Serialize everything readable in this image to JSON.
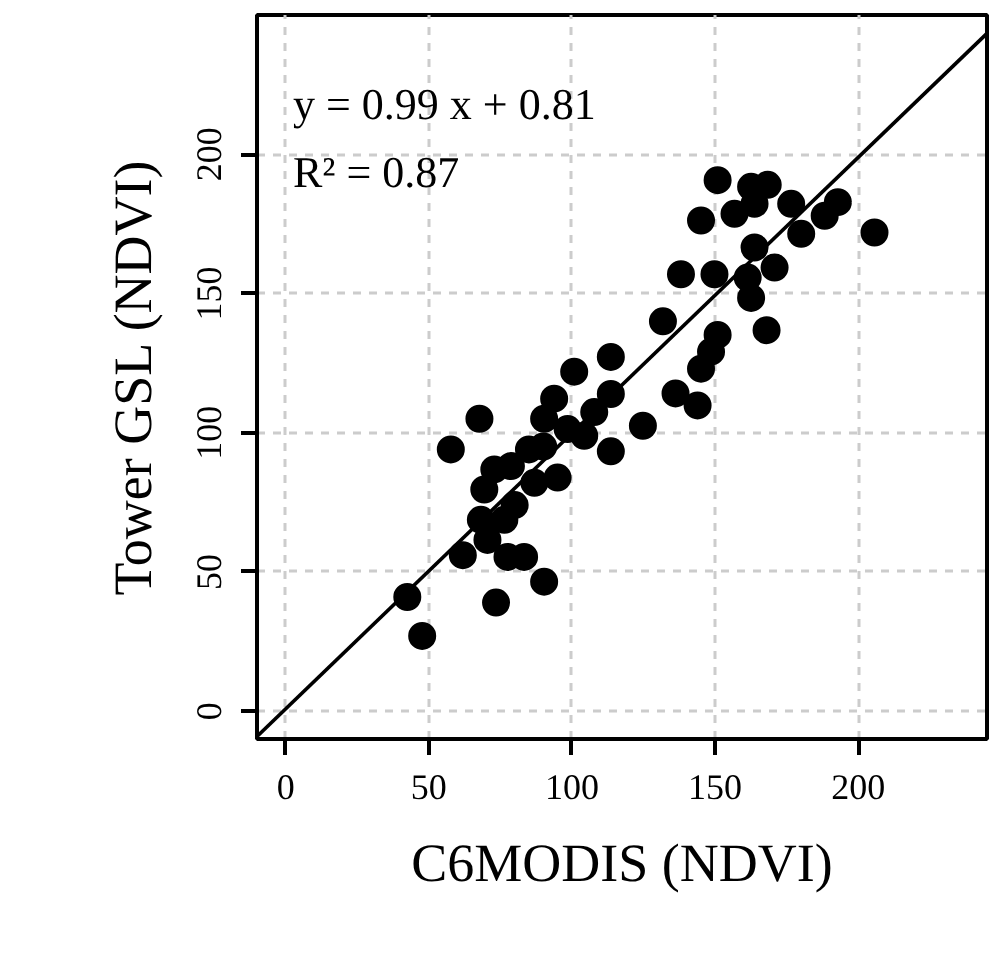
{
  "chart_data": {
    "type": "scatter",
    "xlabel": "C6MODIS (NDVI)",
    "ylabel": "Tower GSL (NDVI)",
    "annotations": [
      "y =  0.99 x + 0.81",
      "R² =  0.87"
    ],
    "xlim": [
      -10,
      245
    ],
    "ylim": [
      -10,
      250
    ],
    "xticks": [
      0,
      50,
      100,
      150,
      200
    ],
    "yticks": [
      0,
      50,
      100,
      150,
      200
    ],
    "grid": true,
    "series": [
      {
        "color": "#000000",
        "marker": "circle",
        "x": [
          42.5,
          47.7,
          73.5,
          90.3,
          61.9,
          83.3,
          77.5,
          70.5,
          68.2,
          76.4,
          69.4,
          72.9,
          78.7,
          86.9,
          95,
          57.7,
          67.7,
          90.3,
          93.8,
          98.5,
          104.3,
          107.8,
          113.6,
          100.8,
          113.6,
          113.6,
          124.8,
          131.8,
          136.2,
          143.9,
          145.1,
          148.6,
          150.9,
          168,
          150.9,
          162.6,
          168.4,
          145.1,
          156.8,
          163.8,
          176.6,
          184.8,
          192.9,
          180.1,
          188.3,
          205.7,
          163.8,
          170.8,
          161.4,
          162.6,
          138.1,
          149.8,
          80,
          90,
          85
        ],
        "values": [
          41,
          27,
          39,
          46.5,
          56,
          55.4,
          55.4,
          61.5,
          68.7,
          68.7,
          79.6,
          86.8,
          88,
          82,
          83.9,
          94,
          105,
          105,
          112.2,
          101.3,
          98.9,
          107.4,
          113.9,
          121.9,
          127.2,
          93.3,
          102.5,
          140,
          114.1,
          109.8,
          123,
          129.1,
          135.1,
          136.8,
          190.7,
          188.3,
          189,
          176.2,
          178.6,
          182.2,
          182.2,
          null,
          182.8,
          171.4,
          177.9,
          171.9,
          166.5,
          159.3,
          155.7,
          148.4,
          156.9,
          156.9,
          74,
          95,
          94
        ]
      },
      {
        "type": "line",
        "color": "#000000",
        "line_style": "solid",
        "x": [
          -10,
          245
        ],
        "values": [
          -9.1,
          243.4
        ]
      }
    ]
  }
}
